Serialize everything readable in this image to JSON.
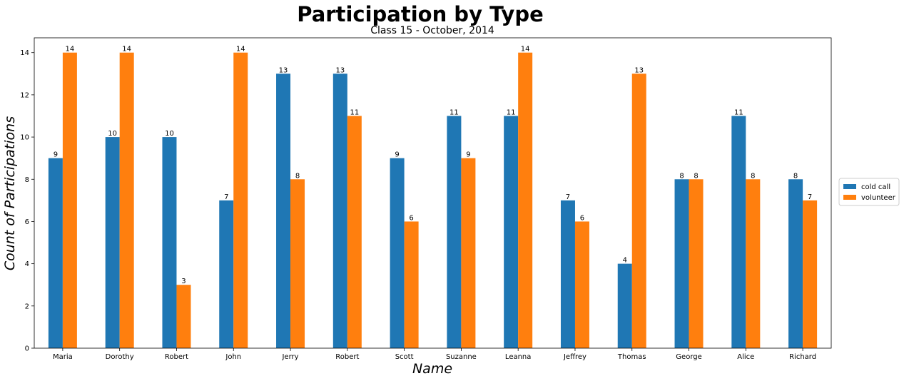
{
  "chart_data": {
    "type": "bar",
    "title": "Participation by Type",
    "subtitle": "Class 15 - October, 2014",
    "xlabel": "Name",
    "ylabel": "Count of Participations",
    "ylim": [
      0,
      14.7
    ],
    "yticks": [
      0,
      2,
      4,
      6,
      8,
      10,
      12,
      14
    ],
    "categories": [
      "Maria",
      "Dorothy",
      "Robert",
      "John",
      "Jerry",
      "Robert",
      "Scott",
      "Suzanne",
      "Leanna",
      "Jeffrey",
      "Thomas",
      "George",
      "Alice",
      "Richard"
    ],
    "series": [
      {
        "name": "cold call",
        "color": "#1f77b4",
        "values": [
          9,
          10,
          10,
          7,
          13,
          13,
          9,
          11,
          11,
          7,
          4,
          8,
          11,
          8
        ]
      },
      {
        "name": "volunteer",
        "color": "#ff7f0e",
        "values": [
          14,
          14,
          3,
          14,
          8,
          11,
          6,
          9,
          14,
          6,
          13,
          8,
          8,
          7
        ]
      }
    ],
    "grid": false,
    "legend": "center-right outside",
    "data_labels": true
  }
}
